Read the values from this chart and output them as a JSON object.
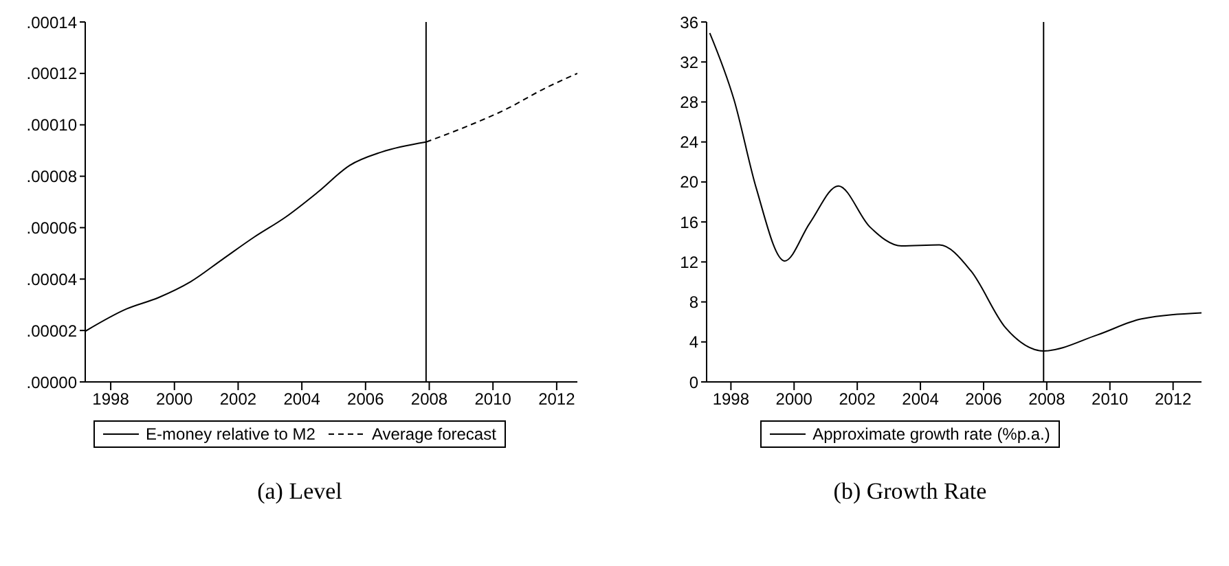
{
  "chart_data": [
    {
      "type": "line",
      "title": "(a) Level",
      "xlim": [
        1997.2,
        2012.65
      ],
      "xticks": [
        1998,
        2000,
        2002,
        2004,
        2006,
        2008,
        2010,
        2012
      ],
      "ylim": [
        0,
        0.00014
      ],
      "yticks": [
        {
          "value": 0,
          "label": ".00000"
        },
        {
          "value": 2e-05,
          "label": ".00002"
        },
        {
          "value": 4e-05,
          "label": ".00004"
        },
        {
          "value": 6e-05,
          "label": ".00006"
        },
        {
          "value": 8e-05,
          "label": ".00008"
        },
        {
          "value": 0.0001,
          "label": ".00010"
        },
        {
          "value": 0.00012,
          "label": ".00012"
        },
        {
          "value": 0.00014,
          "label": ".00014"
        }
      ],
      "series": [
        {
          "name": "E-money relative to M2",
          "color": "#000000",
          "line_style": "solid",
          "x": [
            1997.2,
            1998.5,
            1999.5,
            2000.5,
            2001.5,
            2002.5,
            2003.5,
            2004.5,
            2005.5,
            2006.5,
            2007.9
          ],
          "values": [
            1.97e-05,
            2.84e-05,
            3.28e-05,
            3.89e-05,
            4.76e-05,
            5.63e-05,
            6.42e-05,
            7.38e-05,
            8.42e-05,
            8.94e-05,
            9.33e-05
          ]
        },
        {
          "name": "Average forecast",
          "color": "#000000",
          "line_style": "dashed",
          "x": [
            2007.9,
            2009.1,
            2010.4,
            2011.6,
            2012.65
          ],
          "values": [
            9.33e-05,
            9.9e-05,
            0.000106,
            0.000114,
            0.00012
          ]
        }
      ],
      "ref_lines": [
        {
          "axis": "x",
          "value": 2007.9,
          "color": "#000000"
        }
      ],
      "legend": "bottom",
      "grid": false
    },
    {
      "type": "line",
      "title": "(b) Growth Rate",
      "xlim": [
        1997.23,
        2012.9
      ],
      "xticks": [
        1998,
        2000,
        2002,
        2004,
        2006,
        2008,
        2010,
        2012
      ],
      "ylim": [
        0,
        36
      ],
      "yticks": [
        0,
        4,
        8,
        12,
        16,
        20,
        24,
        28,
        32,
        36
      ],
      "series": [
        {
          "name": "Approximate growth rate (%p.a.)",
          "color": "#000000",
          "line_style": "solid",
          "x": [
            1997.33,
            1998.1,
            1998.8,
            1999.7,
            2000.5,
            2001.4,
            2002.4,
            2003.4,
            2004.6,
            2005.6,
            2006.7,
            2007.9,
            2009.6,
            2011.0,
            2012.9
          ],
          "values": [
            34.9,
            28.2,
            19.4,
            12.1,
            15.9,
            19.6,
            15.5,
            13.6,
            13.7,
            11.1,
            5.4,
            3.1,
            4.7,
            6.3,
            6.9
          ]
        }
      ],
      "ref_lines": [
        {
          "axis": "x",
          "value": 2007.9,
          "color": "#000000"
        }
      ],
      "legend": "bottom",
      "grid": false
    }
  ]
}
